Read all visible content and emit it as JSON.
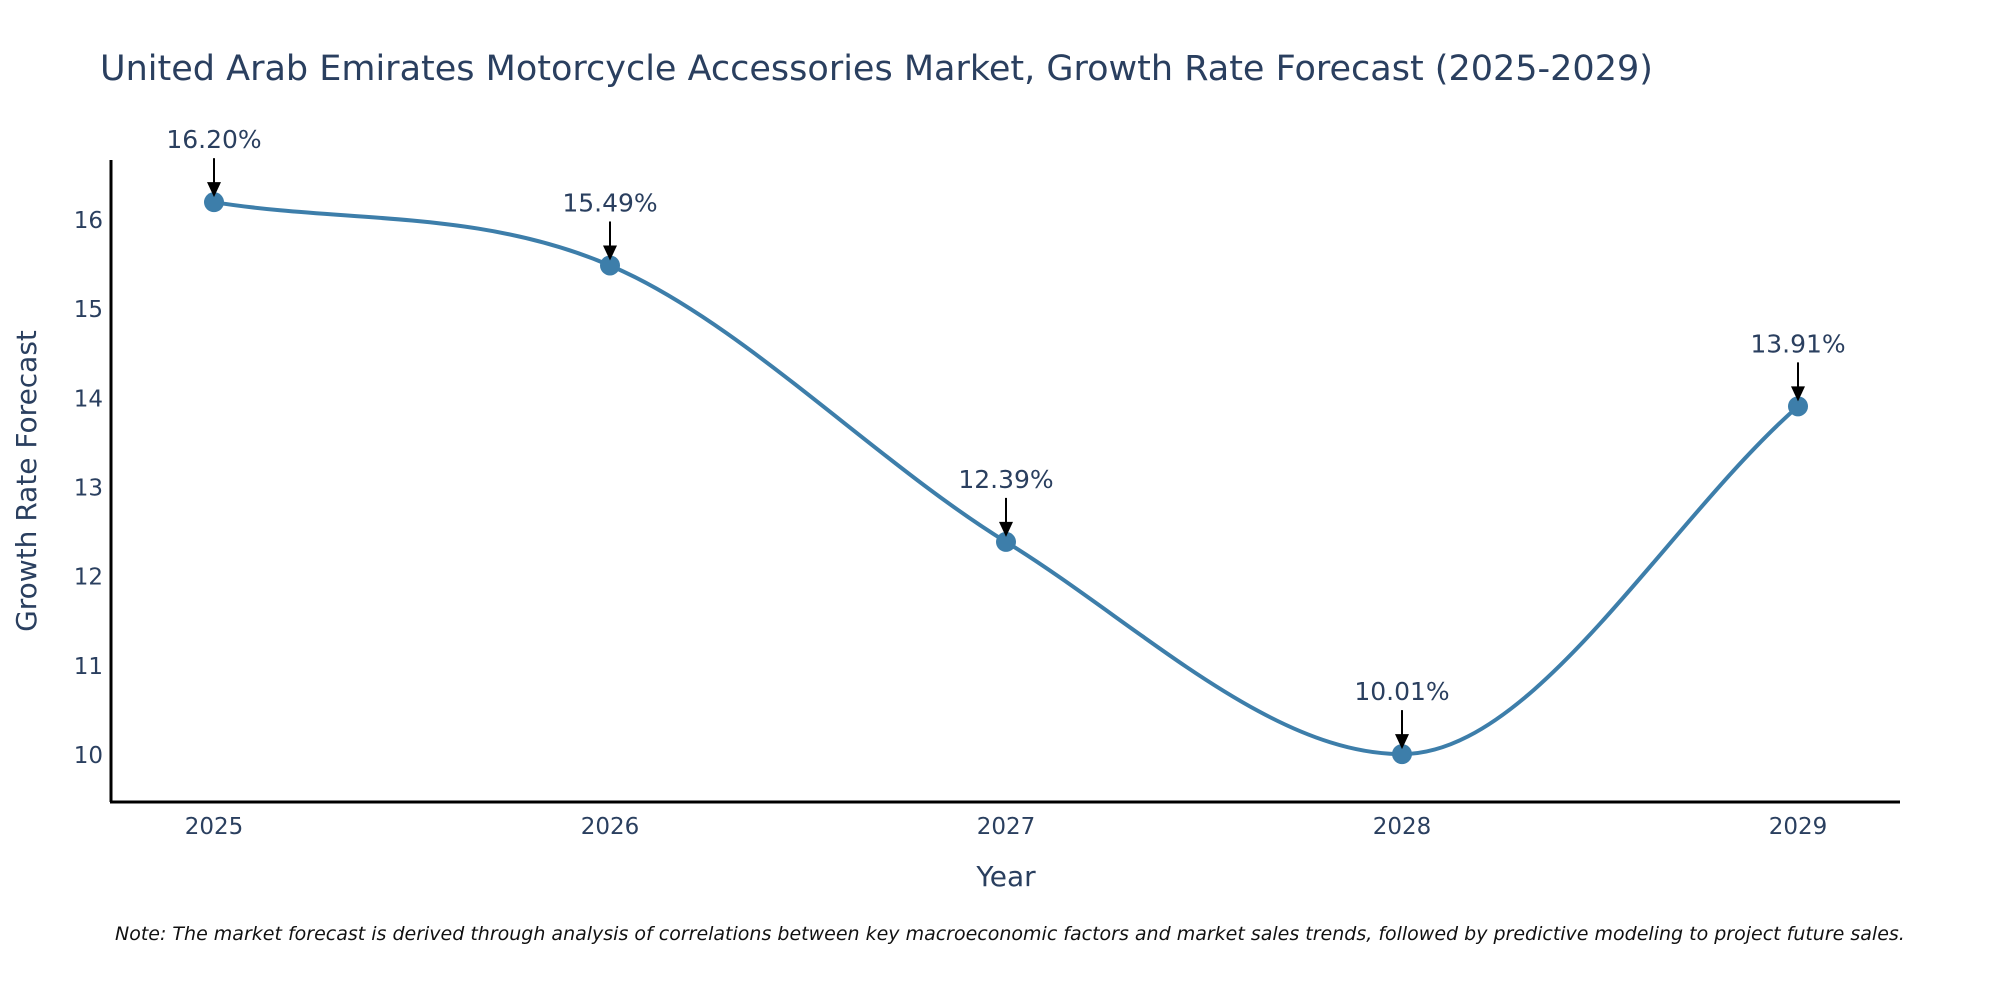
{
  "chart_data": {
    "type": "line",
    "title": "United Arab Emirates Motorcycle Accessories Market, Growth Rate Forecast (2025-2029)",
    "xlabel": "Year",
    "ylabel": "Growth Rate Forecast",
    "categories": [
      "2025",
      "2026",
      "2027",
      "2028",
      "2029"
    ],
    "series": [
      {
        "name": "Growth Rate Forecast",
        "values": [
          16.2,
          15.49,
          12.39,
          10.01,
          13.91
        ]
      }
    ],
    "annotations": [
      "16.20%",
      "15.49%",
      "12.39%",
      "10.01%",
      "13.91%"
    ],
    "yticks": [
      "10",
      "11",
      "12",
      "13",
      "14",
      "15",
      "16"
    ],
    "ylim": [
      9.5,
      16.65
    ],
    "grid": false,
    "line_color": "#3d7eaa",
    "marker_color": "#3d7eaa"
  },
  "note": "Note: The market forecast is derived through analysis of correlations between key macroeconomic factors and market sales trends, followed by predictive modeling to project future sales."
}
